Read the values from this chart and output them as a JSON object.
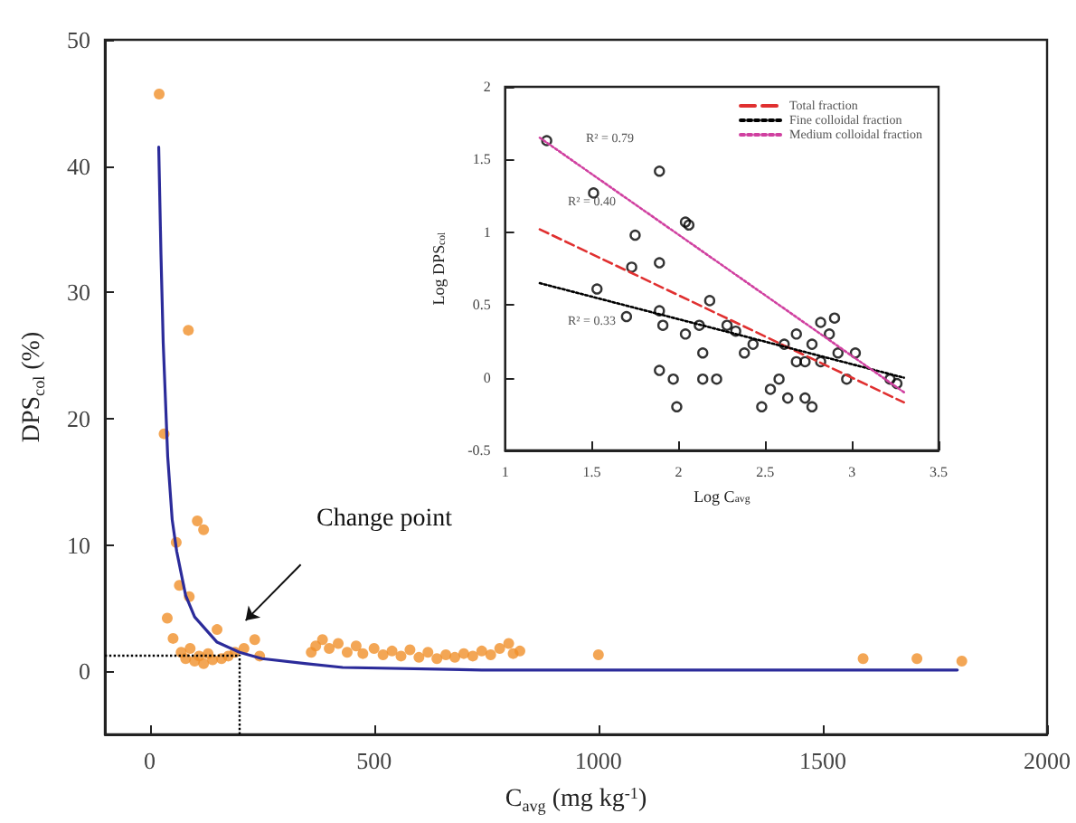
{
  "chart_data": [
    {
      "type": "scatter",
      "xlabel": "C$_{avg}$ (mg kg$^{-1}$)",
      "ylabel": "DPS$_{col}$ (%)",
      "xlim": [
        -100,
        2000
      ],
      "ylim": [
        -5,
        50
      ],
      "xticks": [
        0,
        500,
        1000,
        1500,
        2000
      ],
      "yticks": [
        0,
        10,
        20,
        30,
        40,
        50
      ],
      "grid": false,
      "legend": false,
      "series": [
        {
          "type": "scatter",
          "marker": "circle",
          "color": "#f0902a",
          "x": [
            21,
            32,
            39,
            52,
            59,
            66,
            86,
            88,
            106,
            120,
            70,
            80,
            90,
            100,
            110,
            120,
            130,
            140,
            150,
            160,
            175,
            190,
            210,
            234,
            245,
            360,
            370,
            385,
            400,
            420,
            440,
            460,
            475,
            500,
            520,
            540,
            560,
            580,
            600,
            620,
            640,
            660,
            680,
            700,
            720,
            740,
            760,
            780,
            800,
            810,
            825,
            1000,
            1590,
            1710,
            1810
          ],
          "values": [
            45.7,
            18.8,
            4.2,
            2.6,
            10.2,
            6.8,
            27,
            5.9,
            11.9,
            11.2,
            1.5,
            1.0,
            1.8,
            0.8,
            1.2,
            0.6,
            1.4,
            0.9,
            3.3,
            1.0,
            1.2,
            1.5,
            1.8,
            2.5,
            1.2,
            1.5,
            2.0,
            2.5,
            1.8,
            2.2,
            1.5,
            2.0,
            1.4,
            1.8,
            1.3,
            1.6,
            1.2,
            1.7,
            1.1,
            1.5,
            1.0,
            1.3,
            1.1,
            1.4,
            1.2,
            1.6,
            1.3,
            1.8,
            2.2,
            1.4,
            1.6,
            1.3,
            1.0,
            1.0,
            0.8
          ]
        },
        {
          "type": "line",
          "marker": "none",
          "line_style": "solid",
          "color": "#2b2b9a",
          "x": [
            20,
            25,
            30,
            40,
            50,
            60,
            80,
            100,
            150,
            200,
            250,
            350,
            430,
            740,
            1800
          ],
          "values": [
            41.5,
            33,
            26,
            17,
            12,
            9.5,
            6,
            4.3,
            2.3,
            1.5,
            1.0,
            0.6,
            0.3,
            0.1,
            0.1
          ]
        }
      ],
      "ref_lines": [
        {
          "axis": "x",
          "value": 200,
          "line_style": "dotted",
          "color": "#000000"
        },
        {
          "axis": "y",
          "value": 1.3,
          "line_style": "dotted",
          "color": "#000000"
        }
      ],
      "annotations": [
        "Change point"
      ]
    },
    {
      "type": "scatter",
      "xlabel": "Log C$_{avg}$",
      "ylabel": "Log DPS$_{col}$",
      "xlim": [
        1.0,
        3.5
      ],
      "ylim": [
        -0.5,
        2.0
      ],
      "xticks": [
        1.0,
        1.5,
        2.0,
        2.5,
        3.0,
        3.5
      ],
      "yticks": [
        -0.5,
        0,
        0.5,
        1.0,
        1.5,
        2.0
      ],
      "grid": false,
      "legend": "top right",
      "series": [
        {
          "type": "scatter",
          "marker": "circle",
          "color": "#000000",
          "x": [
            1.24,
            1.89,
            1.51,
            1.75,
            2.04,
            2.06,
            1.73,
            1.89,
            1.53,
            1.89,
            2.18,
            1.7,
            1.91,
            2.04,
            2.12,
            2.28,
            2.33,
            1.89,
            1.97,
            1.99,
            2.14,
            2.14,
            2.38,
            2.43,
            2.58,
            2.61,
            2.68,
            2.73,
            2.77,
            2.82,
            2.87,
            2.9,
            2.92,
            2.63,
            2.73,
            2.77,
            2.97,
            3.02,
            3.22,
            3.26,
            2.48,
            2.53,
            2.22,
            2.68,
            2.82
          ],
          "values": [
            1.63,
            1.42,
            1.27,
            0.98,
            1.07,
            1.05,
            0.76,
            0.79,
            0.61,
            0.46,
            0.53,
            0.42,
            0.36,
            0.3,
            0.36,
            0.36,
            0.32,
            0.05,
            -0.01,
            -0.2,
            -0.01,
            0.17,
            0.17,
            0.23,
            -0.01,
            0.23,
            0.3,
            0.11,
            0.23,
            0.11,
            0.3,
            0.41,
            0.17,
            -0.14,
            -0.14,
            -0.2,
            -0.01,
            0.17,
            -0.01,
            -0.04,
            -0.2,
            -0.08,
            -0.01,
            0.11,
            0.38
          ]
        },
        {
          "type": "line",
          "name": "Total fraction",
          "marker": "none",
          "line_style": "dashed",
          "color": "#e03030",
          "x": [
            1.2,
            3.3
          ],
          "values": [
            1.02,
            -0.17
          ]
        },
        {
          "type": "line",
          "name": "Fine colloidal fraction",
          "marker": "none",
          "line_style": "dotted",
          "color": "#000000",
          "x": [
            1.2,
            3.3
          ],
          "values": [
            0.65,
            0.0
          ]
        },
        {
          "type": "line",
          "name": "Medium colloidal fraction",
          "marker": "none",
          "line_style": "dotted",
          "color": "#d040a0",
          "x": [
            1.2,
            3.3
          ],
          "values": [
            1.65,
            -0.1
          ]
        }
      ],
      "annotations": [
        "R² = 0.79",
        "R² = 0.40",
        "R² = 0.33"
      ]
    }
  ]
}
